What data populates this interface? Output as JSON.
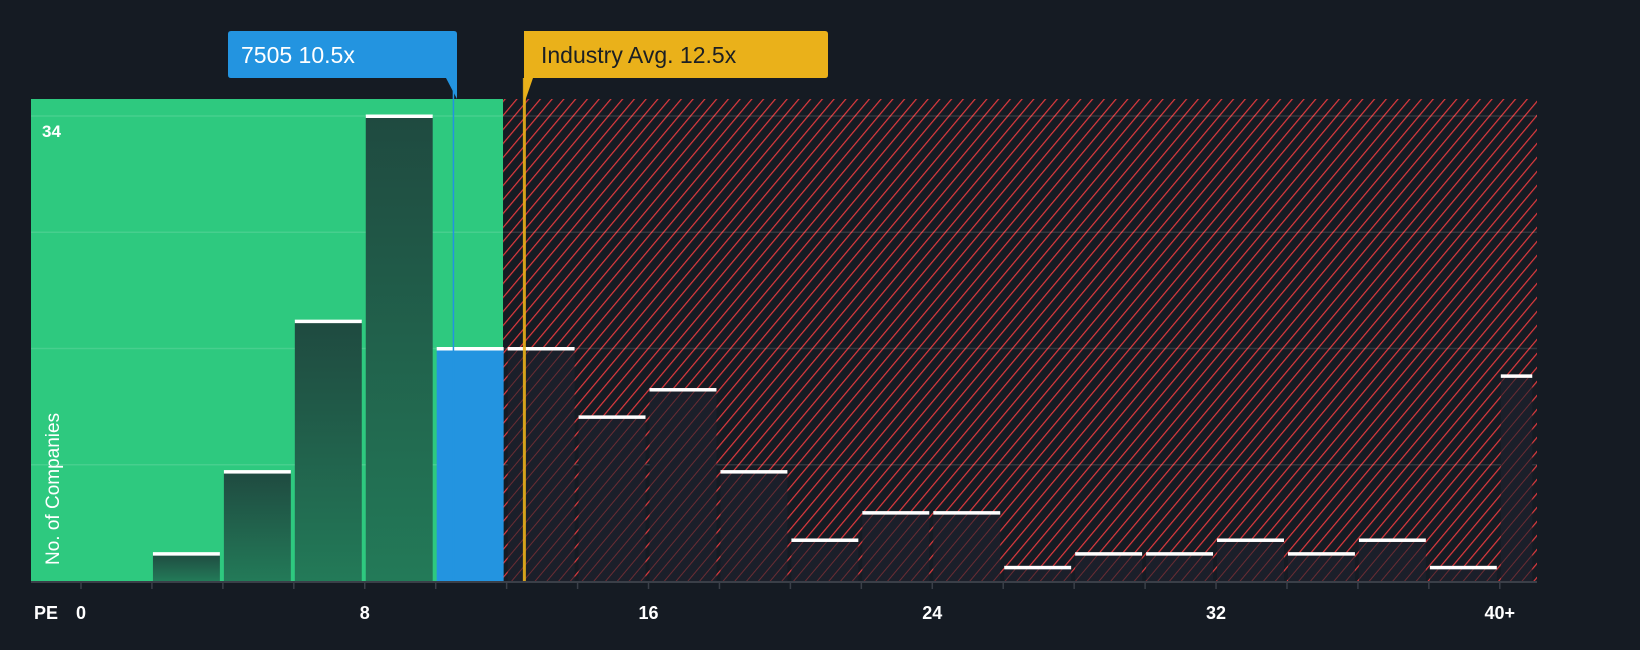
{
  "chart_data": {
    "type": "bar",
    "title": "",
    "xlabel": "PE",
    "ylabel": "No. of Companies",
    "bin_width": 2,
    "bins": [
      {
        "from": 0,
        "to": 2,
        "value": 0
      },
      {
        "from": 2,
        "to": 4,
        "value": 2
      },
      {
        "from": 4,
        "to": 6,
        "value": 8
      },
      {
        "from": 6,
        "to": 8,
        "value": 19
      },
      {
        "from": 8,
        "to": 10,
        "value": 34
      },
      {
        "from": 10,
        "to": 12,
        "value": 17
      },
      {
        "from": 12,
        "to": 14,
        "value": 17
      },
      {
        "from": 14,
        "to": 16,
        "value": 12
      },
      {
        "from": 16,
        "to": 18,
        "value": 14
      },
      {
        "from": 18,
        "to": 20,
        "value": 8
      },
      {
        "from": 20,
        "to": 22,
        "value": 3
      },
      {
        "from": 22,
        "to": 24,
        "value": 5
      },
      {
        "from": 24,
        "to": 26,
        "value": 5
      },
      {
        "from": 26,
        "to": 28,
        "value": 1
      },
      {
        "from": 28,
        "to": 30,
        "value": 2
      },
      {
        "from": 30,
        "to": 32,
        "value": 2
      },
      {
        "from": 32,
        "to": 34,
        "value": 3
      },
      {
        "from": 34,
        "to": 36,
        "value": 2
      },
      {
        "from": 36,
        "to": 38,
        "value": 3
      },
      {
        "from": 38,
        "to": 40,
        "value": 1
      },
      {
        "from": 40,
        "to": 41,
        "value": 15
      }
    ],
    "xticks": [
      "0",
      "8",
      "16",
      "24",
      "32",
      "40+"
    ],
    "xtick_values": [
      0,
      8,
      16,
      24,
      32,
      40
    ],
    "ytick_label": "34",
    "ylim": [
      0,
      34
    ],
    "xlim": [
      -1.4,
      41
    ],
    "grid": true,
    "company": {
      "label": "7505 10.5x",
      "value": 10.5,
      "color": "#2394e0"
    },
    "industry": {
      "label": "Industry Avg. 12.5x",
      "value": 12.5,
      "color": "#eab11a"
    },
    "fair_region_end": 11.9,
    "colors": {
      "green": "#2ec97f",
      "red": "#e03a3e",
      "background": "#151b23"
    }
  }
}
